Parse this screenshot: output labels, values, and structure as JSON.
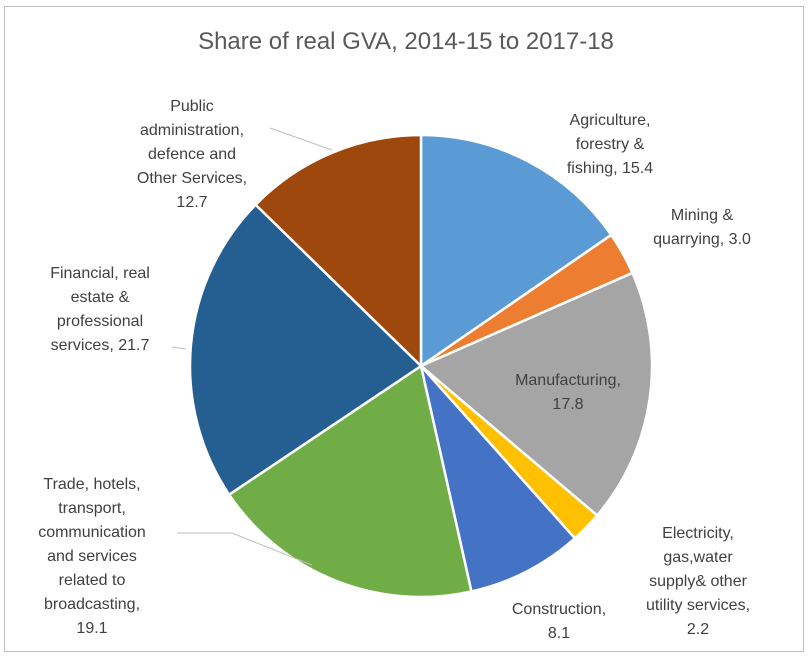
{
  "chart_data": {
    "type": "pie",
    "title": "Share of real GVA, 2014-15 to 2017-18",
    "start_angle_deg": 0,
    "direction": "clockwise",
    "slices": [
      {
        "name": "Agriculture, forestry & fishing",
        "value": 15.4,
        "color": "#5b9bd5",
        "label_lines": [
          "Agriculture,",
          "forestry &",
          "fishing, 15.4"
        ]
      },
      {
        "name": "Mining & quarrying",
        "value": 3.0,
        "color": "#ed7d31",
        "label_lines": [
          "Mining &",
          "quarrying, 3.0"
        ]
      },
      {
        "name": "Manufacturing",
        "value": 17.8,
        "color": "#a5a5a5",
        "label_lines": [
          "Manufacturing,",
          "17.8"
        ]
      },
      {
        "name": "Electricity, gas,water supply& other utility services",
        "value": 2.2,
        "color": "#ffc000",
        "label_lines": [
          "Electricity,",
          "gas,water",
          "supply& other",
          "utility services,",
          "2.2"
        ]
      },
      {
        "name": "Construction",
        "value": 8.1,
        "color": "#4472c4",
        "label_lines": [
          "Construction,",
          "8.1"
        ]
      },
      {
        "name": "Trade, hotels, transport, communication and services related to broadcasting",
        "value": 19.1,
        "color": "#70ad47",
        "label_lines": [
          "Trade, hotels,",
          "transport,",
          "communication",
          "and services",
          "related to",
          "broadcasting,",
          "19.1"
        ]
      },
      {
        "name": "Financial, real estate & professional services",
        "value": 21.7,
        "color": "#255e91",
        "label_lines": [
          "Financial, real",
          "estate &",
          "professional",
          "services, 21.7"
        ]
      },
      {
        "name": "Public administration, defence and Other Services",
        "value": 12.7,
        "color": "#9e480e",
        "label_lines": [
          "Public",
          "administration,",
          "defence and",
          "Other Services,",
          "12.7"
        ]
      }
    ]
  }
}
